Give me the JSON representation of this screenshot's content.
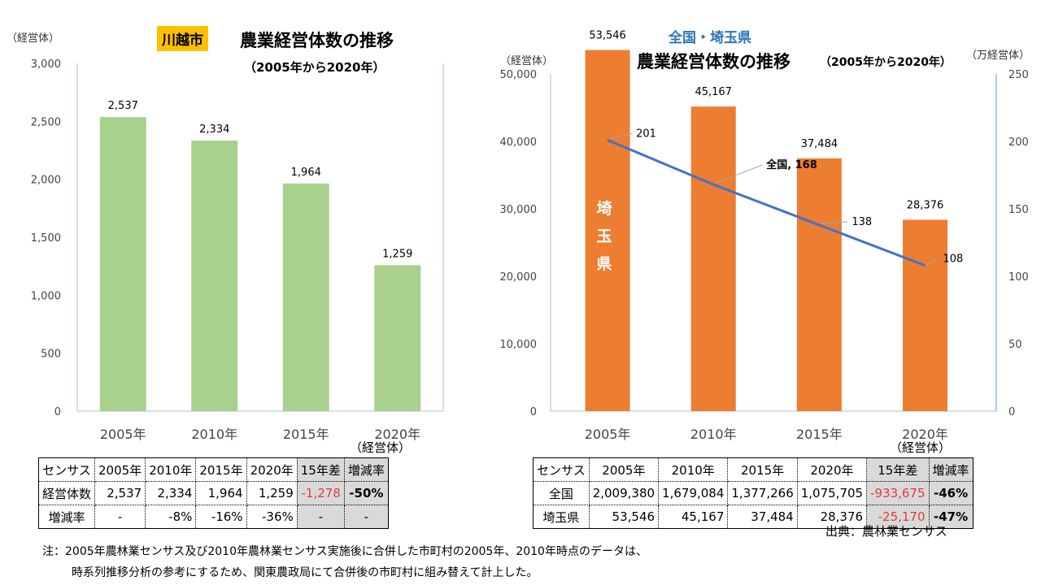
{
  "left": {
    "badge": "川越市",
    "title": "農業経営体数の推移",
    "subtitle": "（2005年から2020年）",
    "unit": "（経営体）",
    "table_unit": "（経営体）",
    "table": {
      "header": [
        "センサス",
        "2005年",
        "2010年",
        "2015年",
        "2020年",
        "15年差",
        "増減率"
      ],
      "rows": [
        [
          "経営体数",
          "2,537",
          "2,334",
          "1,964",
          "1,259",
          "-1,278",
          "-50%"
        ],
        [
          "増減率",
          "-",
          "-8%",
          "-16%",
          "-36%",
          "-",
          "-"
        ]
      ]
    }
  },
  "right": {
    "region": "全国・埼玉県",
    "title": "農業経営体数の推移",
    "subtitle": "（2005年から2020年）",
    "unit_left": "（経営体）",
    "unit_right": "（万経営体）",
    "bar_label": "埼玉県",
    "table_unit": "（経営体）",
    "table": {
      "header": [
        "センサス",
        "2005年",
        "2010年",
        "2015年",
        "2020年",
        "15年差",
        "増減率"
      ],
      "rows": [
        [
          "全国",
          "2,009,380",
          "1,679,084",
          "1,377,266",
          "1,075,705",
          "-933,675",
          "-46%"
        ],
        [
          "埼玉県",
          "53,546",
          "45,167",
          "37,484",
          "28,376",
          "-25,170",
          "-47%"
        ]
      ]
    },
    "source": "出典：農林業センサス"
  },
  "note": [
    "注：2005年農林業センサス及び2010年農林業センサス実施後に合併した市町村の2005年、2010年時点のデータは、",
    "時系列推移分析の参考にするため、関東農政局にて合併後の市町村に組み替えて計上した。"
  ],
  "chart_data": [
    {
      "type": "bar",
      "categories": [
        "2005年",
        "2010年",
        "2015年",
        "2020年"
      ],
      "values": [
        2537,
        2334,
        1964,
        1259
      ],
      "labels": [
        "2,537",
        "2,334",
        "1,964",
        "1,259"
      ],
      "ylim": [
        0,
        3000
      ],
      "yticks": [
        "0",
        "500",
        "1,000",
        "1,500",
        "2,000",
        "2,500",
        "3,000"
      ],
      "ylabel": "（経営体）",
      "color": "#a9d18e"
    },
    {
      "type": "bar+line",
      "categories": [
        "2005年",
        "2010年",
        "2015年",
        "2020年"
      ],
      "series": [
        {
          "name": "埼玉県",
          "type": "bar",
          "axis": "left",
          "values": [
            53546,
            45167,
            37484,
            28376
          ],
          "labels": [
            "53,546",
            "45,167",
            "37,484",
            "28,376"
          ],
          "color": "#ed7d31"
        },
        {
          "name": "全国",
          "type": "line",
          "axis": "right",
          "values": [
            201,
            168,
            138,
            108
          ],
          "labels": [
            "201",
            "全国, 168",
            "138",
            "108"
          ],
          "color": "#4472c4"
        }
      ],
      "ylim_left": [
        0,
        50000
      ],
      "yticks_left": [
        "0",
        "10,000",
        "20,000",
        "30,000",
        "40,000",
        "50,000"
      ],
      "ylim_right": [
        0,
        250
      ],
      "yticks_right": [
        "0",
        "50",
        "100",
        "150",
        "200",
        "250"
      ],
      "ylabel_left": "（経営体）",
      "ylabel_right": "（万経営体）"
    }
  ]
}
